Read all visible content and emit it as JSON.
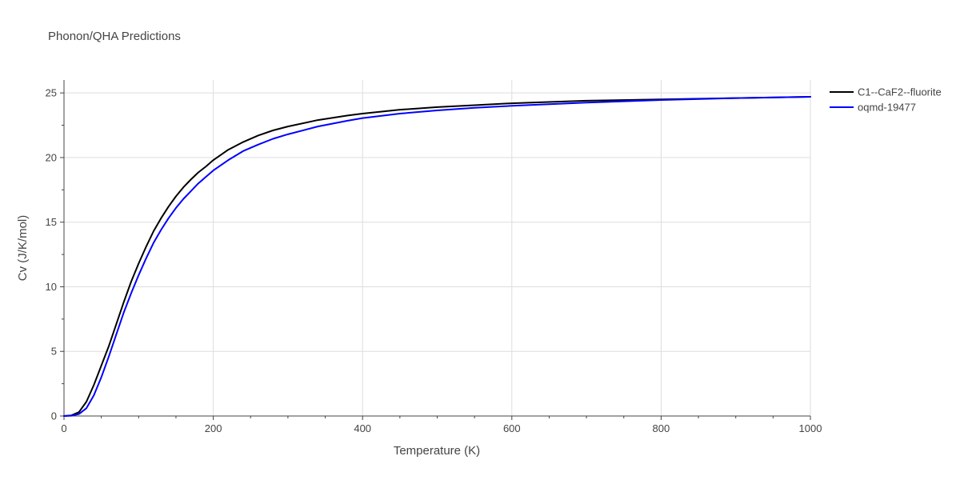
{
  "chart_data": {
    "type": "line",
    "title": "Phonon/QHA Predictions",
    "xlabel": "Temperature (K)",
    "ylabel": "Cv (J/K/mol)",
    "xlim": [
      0,
      1000
    ],
    "ylim": [
      0,
      26
    ],
    "x_ticks": [
      0,
      200,
      400,
      600,
      800,
      1000
    ],
    "y_ticks": [
      0,
      5,
      10,
      15,
      20,
      25
    ],
    "grid": true,
    "legend_position": "top-right, outside plot",
    "series": [
      {
        "name": "C1--CaF2--fluorite",
        "color": "#000000",
        "x": [
          0,
          10,
          20,
          30,
          40,
          50,
          60,
          70,
          80,
          90,
          100,
          110,
          120,
          130,
          140,
          150,
          160,
          170,
          180,
          190,
          200,
          220,
          240,
          260,
          280,
          300,
          340,
          380,
          400,
          450,
          500,
          550,
          600,
          700,
          800,
          900,
          1000
        ],
        "values": [
          0,
          0.05,
          0.3,
          1.1,
          2.4,
          3.9,
          5.4,
          7.1,
          8.8,
          10.4,
          11.8,
          13.1,
          14.3,
          15.3,
          16.2,
          17.0,
          17.7,
          18.3,
          18.85,
          19.3,
          19.8,
          20.6,
          21.2,
          21.7,
          22.1,
          22.4,
          22.9,
          23.25,
          23.4,
          23.7,
          23.9,
          24.05,
          24.2,
          24.4,
          24.5,
          24.6,
          24.7
        ]
      },
      {
        "name": "oqmd-19477",
        "color": "#0000ff",
        "x": [
          0,
          10,
          20,
          30,
          40,
          50,
          60,
          70,
          80,
          90,
          100,
          110,
          120,
          130,
          140,
          150,
          160,
          170,
          180,
          190,
          200,
          220,
          240,
          260,
          280,
          300,
          340,
          380,
          400,
          450,
          500,
          550,
          600,
          700,
          800,
          900,
          1000
        ],
        "values": [
          0,
          0.02,
          0.15,
          0.6,
          1.6,
          3.0,
          4.6,
          6.3,
          8.0,
          9.5,
          10.9,
          12.2,
          13.4,
          14.4,
          15.3,
          16.1,
          16.8,
          17.4,
          18.0,
          18.5,
          19.0,
          19.8,
          20.5,
          21.0,
          21.45,
          21.8,
          22.4,
          22.85,
          23.05,
          23.4,
          23.65,
          23.85,
          24.0,
          24.25,
          24.45,
          24.6,
          24.7
        ]
      }
    ]
  }
}
